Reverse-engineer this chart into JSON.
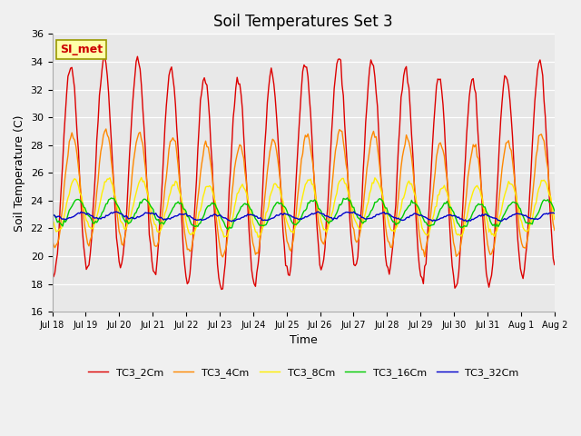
{
  "title": "Soil Temperatures Set 3",
  "xlabel": "Time",
  "ylabel": "Soil Temperature (C)",
  "ylim": [
    16,
    36
  ],
  "yticks": [
    16,
    18,
    20,
    22,
    24,
    26,
    28,
    30,
    32,
    34,
    36
  ],
  "xtick_labels": [
    "Jul 18",
    "Jul 19",
    "Jul 20",
    "Jul 21",
    "Jul 22",
    "Jul 23",
    "Jul 24",
    "Jul 25",
    "Jul 26",
    "Jul 27",
    "Jul 28",
    "Jul 29",
    "Jul 30",
    "Jul 31",
    "Aug 1",
    "Aug 2"
  ],
  "series_colors": [
    "#dd0000",
    "#ff8800",
    "#ffee00",
    "#00cc00",
    "#0000cc"
  ],
  "series_names": [
    "TC3_2Cm",
    "TC3_4Cm",
    "TC3_8Cm",
    "TC3_16Cm",
    "TC3_32Cm"
  ],
  "annotation_text": "SI_met",
  "bg_color": "#e8e8e8",
  "fig_bg_color": "#f0f0f0",
  "title_fontsize": 12,
  "label_fontsize": 9,
  "tick_fontsize": 8
}
